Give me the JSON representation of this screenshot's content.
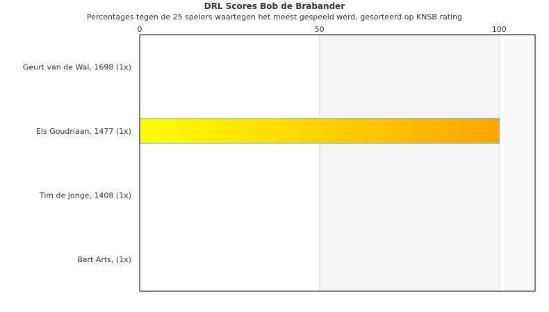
{
  "chart_data": {
    "type": "bar",
    "orientation": "horizontal",
    "title": "DRL Scores Bob de Brabander",
    "subtitle": "Percentages tegen de 25 spelers waartegen het meest gespeeld werd, gesorteerd op KNSB rating",
    "categories": [
      "Geurt van de Wal, 1698 (1x)",
      "Els Goudriaan, 1477 (1x)",
      "Tim de Jonge, 1408 (1x)",
      "Bart Arts,  (1x)"
    ],
    "values": [
      0,
      100,
      0,
      0
    ],
    "xlim": [
      0,
      110
    ],
    "xticks": [
      0,
      50,
      100
    ],
    "axis_position": "top",
    "bands": [
      {
        "from": 0,
        "to": 50,
        "color": "#ffffff"
      },
      {
        "from": 50,
        "to": 100,
        "color": "#f3f3f3"
      },
      {
        "from": 100,
        "to": 110,
        "color": "#f8fafc"
      }
    ],
    "bar_gradient": [
      "#ffff00",
      "#ffa500"
    ],
    "bar_border": "#5aaaf0",
    "grid": true,
    "legend": "none"
  }
}
